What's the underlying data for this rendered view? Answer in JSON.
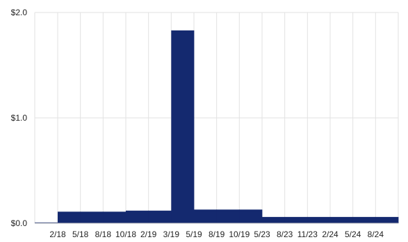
{
  "chart_data": {
    "type": "bar",
    "categories": [
      "",
      "2/18",
      "5/18",
      "8/18",
      "10/18",
      "2/19",
      "3/19",
      "5/19",
      "8/19",
      "10/19",
      "5/23",
      "8/23",
      "11/23",
      "2/24",
      "5/24",
      "8/24"
    ],
    "values": [
      0.005,
      0.11,
      0.11,
      0.11,
      0.12,
      0.12,
      1.83,
      0.13,
      0.13,
      0.13,
      0.06,
      0.06,
      0.06,
      0.06,
      0.06,
      0.06
    ],
    "y_ticks": [
      "$0.0",
      "$1.0",
      "$2.0"
    ],
    "y_tick_values": [
      0,
      1,
      2
    ],
    "ylim": [
      0,
      2
    ],
    "grid": true,
    "bar_color": "#14296f",
    "grid_color": "#e2e2e2"
  }
}
